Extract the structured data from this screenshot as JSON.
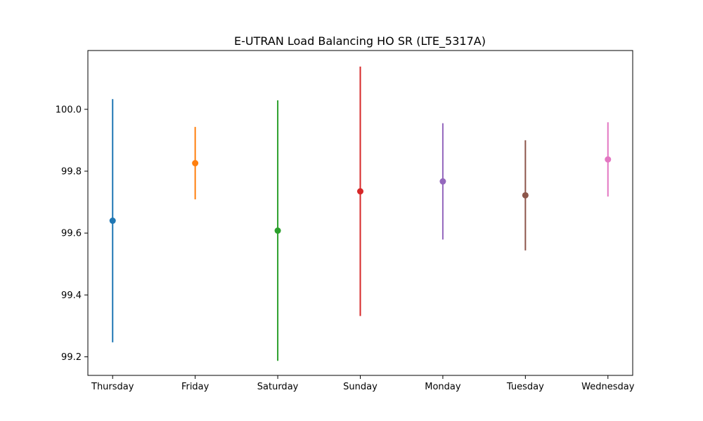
{
  "chart_data": {
    "type": "errorbar",
    "title": "E-UTRAN Load Balancing HO SR (LTE_5317A)",
    "xlabel": "",
    "ylabel": "",
    "categories": [
      "Thursday",
      "Friday",
      "Saturday",
      "Sunday",
      "Monday",
      "Tuesday",
      "Wednesday"
    ],
    "values": [
      99.64,
      99.826,
      99.608,
      99.735,
      99.767,
      99.722,
      99.838
    ],
    "errors": [
      0.393,
      0.117,
      0.421,
      0.403,
      0.188,
      0.178,
      0.12
    ],
    "colors": [
      "#1f77b4",
      "#ff7f0e",
      "#2ca02c",
      "#d62728",
      "#9467bd",
      "#8c564b",
      "#e377c2"
    ],
    "ylim": [
      99.14,
      100.19
    ],
    "yticks": [
      99.2,
      99.4,
      99.6,
      99.8,
      100.0
    ],
    "ytick_labels": [
      "99.2",
      "99.4",
      "99.6",
      "99.8",
      "100.0"
    ],
    "grid": false,
    "legend": "none"
  }
}
